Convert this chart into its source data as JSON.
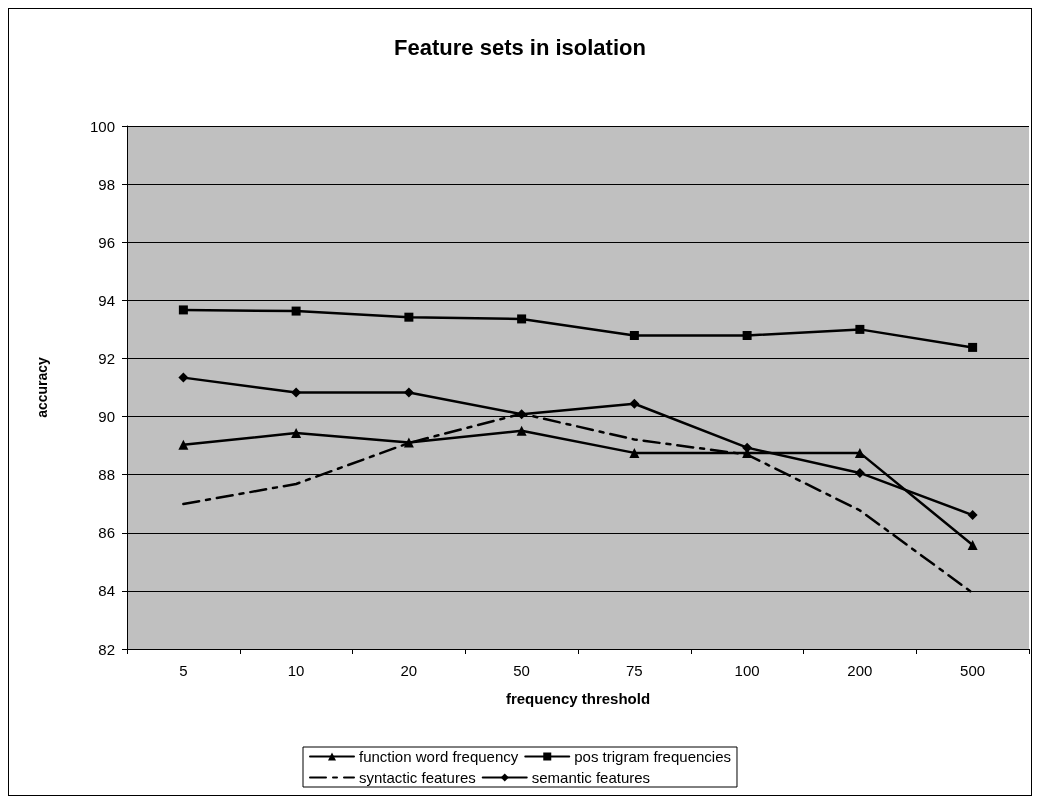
{
  "chart_data": {
    "type": "line",
    "title": "Feature sets in isolation",
    "xlabel": "frequency threshold",
    "ylabel": "accuracy",
    "categories": [
      "5",
      "10",
      "20",
      "50",
      "75",
      "100",
      "200",
      "500"
    ],
    "ylim": [
      82,
      100
    ],
    "yticks": [
      82,
      84,
      86,
      88,
      90,
      92,
      94,
      96,
      98,
      100
    ],
    "grid": "y",
    "legend": "bottom",
    "series": [
      {
        "name": "function word frequency",
        "color": "#000000",
        "marker": "triangle",
        "line_style": "solid",
        "values": [
          89.03,
          89.43,
          89.11,
          89.51,
          88.75,
          88.75,
          88.75,
          85.58
        ]
      },
      {
        "name": "pos trigram frequencies",
        "color": "#000000",
        "marker": "square",
        "line_style": "solid",
        "values": [
          93.67,
          93.63,
          93.42,
          93.36,
          92.79,
          92.79,
          93.0,
          92.38
        ]
      },
      {
        "name": "syntactic features",
        "color": "#000000",
        "marker": "none",
        "line_style": "dashed",
        "values": [
          86.99,
          87.68,
          89.09,
          90.1,
          89.21,
          88.69,
          86.77,
          83.93
        ]
      },
      {
        "name": "semantic features",
        "color": "#000000",
        "marker": "diamond",
        "line_style": "solid",
        "values": [
          91.34,
          90.83,
          90.83,
          90.08,
          90.44,
          88.93,
          88.06,
          86.61
        ]
      }
    ]
  }
}
